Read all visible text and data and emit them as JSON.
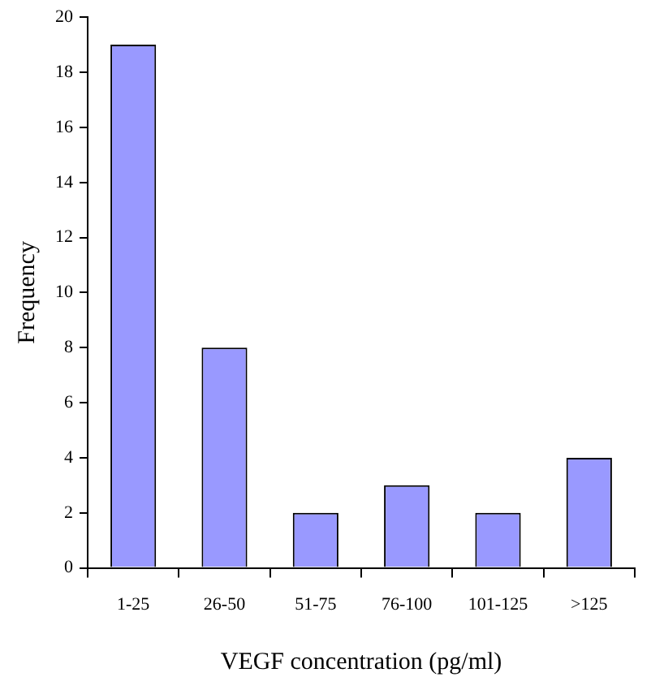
{
  "chart_data": {
    "type": "bar",
    "categories": [
      "1-25",
      "26-50",
      "51-75",
      "76-100",
      "101-125",
      ">125"
    ],
    "values": [
      19,
      8,
      2,
      3,
      2,
      4
    ],
    "color": "#9999ff",
    "xlabel": "VEGF concentration (pg/ml)",
    "ylabel": "Frequency",
    "ylim": [
      0,
      20
    ],
    "yticks": [
      0,
      2,
      4,
      6,
      8,
      10,
      12,
      14,
      16,
      18,
      20
    ],
    "grid": false,
    "legend": false
  }
}
